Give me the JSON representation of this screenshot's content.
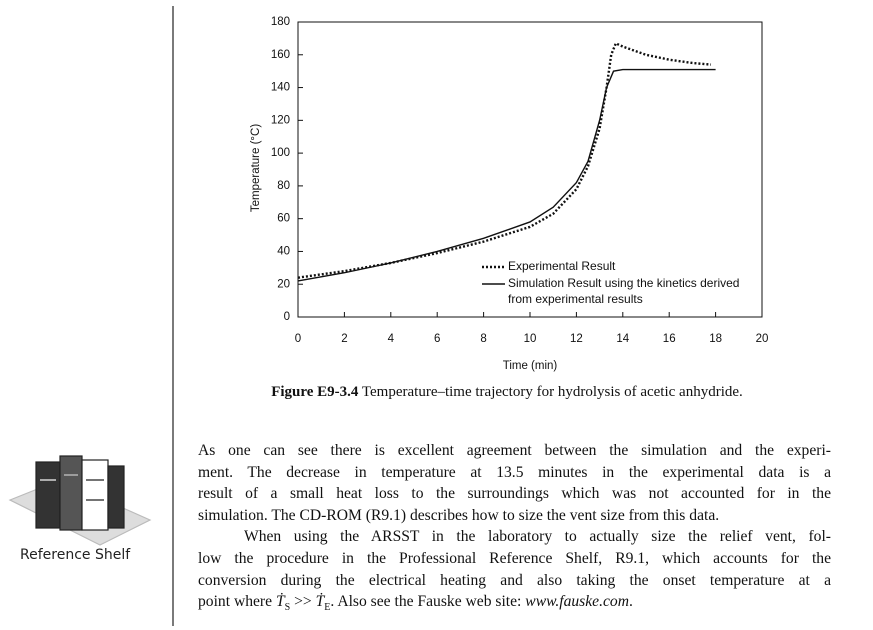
{
  "chart_data": {
    "type": "line",
    "xlabel": "Time (min)",
    "ylabel": "Temperature (°C)",
    "xlim": [
      0,
      20
    ],
    "xticks": [
      0,
      2,
      4,
      6,
      8,
      10,
      12,
      14,
      16,
      18,
      20
    ],
    "ylim": [
      0,
      180
    ],
    "yticks": [
      0,
      20,
      40,
      60,
      80,
      100,
      120,
      140,
      160,
      180
    ],
    "series": [
      {
        "name": "Experimental Result",
        "color": "#111111",
        "style": "dotted",
        "x": [
          0,
          2,
          4,
          6,
          8,
          10,
          11,
          12,
          12.5,
          13,
          13.3,
          13.5,
          13.7,
          14,
          15,
          16,
          17,
          17.8
        ],
        "values": [
          24,
          28,
          33,
          39,
          46,
          55,
          63,
          78,
          92,
          115,
          140,
          160,
          167,
          165,
          160,
          157,
          155,
          154
        ]
      },
      {
        "name": "Simulation Result using the kinetics derived from experimental results",
        "color": "#111111",
        "style": "solid",
        "x": [
          0,
          2,
          4,
          6,
          8,
          10,
          11,
          12,
          12.5,
          13,
          13.3,
          13.6,
          14,
          16,
          18
        ],
        "values": [
          22,
          27,
          33,
          40,
          48,
          58,
          67,
          82,
          95,
          120,
          140,
          150,
          151,
          151,
          151
        ]
      }
    ]
  },
  "caption": {
    "label": "Figure E9-3.4",
    "text": " Temperature–time trajectory for hydrolysis of acetic anhydride."
  },
  "sidebar": {
    "label": "Reference Shelf"
  },
  "paragraphs": [
    [
      "As one can see there is excellent agreement between the simulation and the experi-",
      "ment. The decrease in temperature at 13.5 minutes in the experimental data is a",
      "result of a small heat loss to the surroundings which was not accounted for in the",
      "simulation. The CD-ROM (R9.1) describes how to size the vent size from this data."
    ],
    [
      "When using the ARSST in the laboratory to actually size the relief vent, fol-",
      "low the procedure in the Professional Reference Shelf, R9.1, which accounts for the",
      "conversion during the electrical heating and also taking the onset temperature at a"
    ]
  ],
  "last_line": {
    "before": "point where ",
    "t1": "Ṫ",
    "s1": "S",
    "mid": " >> ",
    "t2": "Ṫ",
    "s2": "E",
    "after": ". Also see the Fauske web site: ",
    "link": "www.fauske.com",
    "end": "."
  }
}
